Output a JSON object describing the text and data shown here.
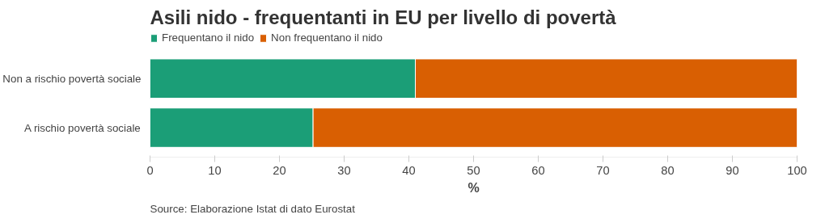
{
  "chart_data": {
    "type": "bar",
    "orientation": "horizontal",
    "stacked": true,
    "title": "Asili nido - frequentanti in EU per livello di povertà",
    "xlabel": "%",
    "categories": [
      "Non a rischio povertà sociale",
      "A rischio povertà sociale"
    ],
    "series": [
      {
        "name": "Frequentano il nido",
        "color": "#1b9e77",
        "values": [
          41.0,
          25.2
        ]
      },
      {
        "name": "Non frequentano il nido",
        "color": "#d95f02",
        "values": [
          59.0,
          74.8
        ]
      }
    ],
    "xlim": [
      0,
      100
    ],
    "xticks": [
      0,
      10,
      20,
      30,
      40,
      50,
      60,
      70,
      80,
      90,
      100
    ],
    "grid": false,
    "legend": "top left",
    "annotations": [
      "Source: Elaborazione Istat di dato Eurostat"
    ]
  }
}
